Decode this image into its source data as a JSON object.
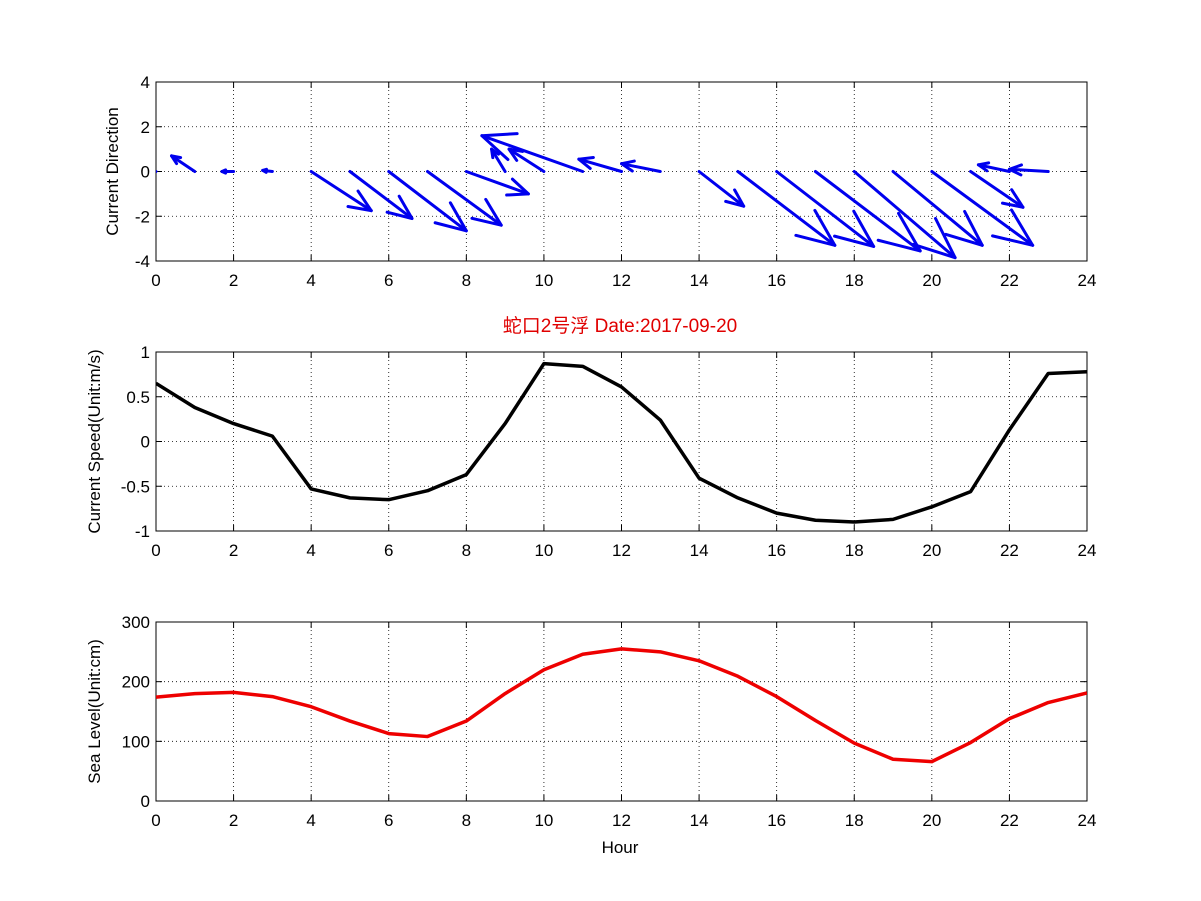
{
  "figure": {
    "title": "蛇口2号浮   Date:2017-09-20",
    "xlabel": "Hour"
  },
  "chart_data": [
    {
      "type": "quiver",
      "ylabel": "Current Direction",
      "xlim": [
        0,
        24
      ],
      "ylim": [
        -4,
        4
      ],
      "xticks": [
        0,
        2,
        4,
        6,
        8,
        10,
        12,
        14,
        16,
        18,
        20,
        22,
        24
      ],
      "yticks": [
        -4,
        -2,
        0,
        2,
        4
      ],
      "grid": true,
      "color": "#0000ee",
      "x": [
        0,
        1,
        2,
        3,
        4,
        5,
        6,
        7,
        8,
        9,
        10,
        11,
        12,
        13,
        14,
        15,
        16,
        17,
        18,
        19,
        20,
        21,
        22,
        23
      ],
      "u": [
        -1.0,
        -0.6,
        -0.3,
        -0.25,
        1.55,
        1.6,
        2.0,
        1.9,
        1.6,
        -0.35,
        -0.9,
        -2.6,
        -1.1,
        -1.0,
        1.15,
        2.5,
        2.5,
        2.7,
        2.6,
        2.3,
        2.6,
        1.35,
        -0.8,
        -1.0
      ],
      "v": [
        0.8,
        0.7,
        0,
        0.05,
        -1.75,
        -2.1,
        -2.65,
        -2.4,
        -1.0,
        1.0,
        1.0,
        1.6,
        0.55,
        0.35,
        -1.55,
        -3.3,
        -3.35,
        -3.55,
        -3.85,
        -3.3,
        -3.3,
        -1.6,
        0.3,
        0.1
      ]
    },
    {
      "type": "line",
      "ylabel": "Current Speed(Unit:m/s)",
      "xlim": [
        0,
        24
      ],
      "ylim": [
        -1,
        1
      ],
      "xticks": [
        0,
        2,
        4,
        6,
        8,
        10,
        12,
        14,
        16,
        18,
        20,
        22,
        24
      ],
      "yticks": [
        -1,
        -0.5,
        0,
        0.5,
        1
      ],
      "grid": true,
      "color": "#000000",
      "x": [
        0,
        1,
        2,
        3,
        4,
        5,
        6,
        7,
        8,
        9,
        10,
        11,
        12,
        13,
        14,
        15,
        16,
        17,
        18,
        19,
        20,
        21,
        22,
        23,
        24
      ],
      "y": [
        0.65,
        0.38,
        0.2,
        0.06,
        -0.53,
        -0.63,
        -0.65,
        -0.55,
        -0.37,
        0.2,
        0.87,
        0.84,
        0.61,
        0.24,
        -0.41,
        -0.63,
        -0.8,
        -0.88,
        -0.9,
        -0.87,
        -0.73,
        -0.56,
        0.13,
        0.76,
        0.78
      ]
    },
    {
      "type": "line",
      "ylabel": "Sea Level(Unit:cm)",
      "xlim": [
        0,
        24
      ],
      "ylim": [
        0,
        300
      ],
      "xticks": [
        0,
        2,
        4,
        6,
        8,
        10,
        12,
        14,
        16,
        18,
        20,
        22,
        24
      ],
      "yticks": [
        0,
        100,
        200,
        300
      ],
      "grid": true,
      "color": "#ee0000",
      "x": [
        0,
        1,
        2,
        3,
        4,
        5,
        6,
        7,
        8,
        9,
        10,
        11,
        12,
        13,
        14,
        15,
        16,
        17,
        18,
        19,
        20,
        21,
        22,
        23,
        24
      ],
      "y": [
        174,
        180,
        182,
        175,
        158,
        134,
        113,
        108,
        134,
        180,
        220,
        246,
        255,
        250,
        235,
        209,
        175,
        135,
        97,
        70,
        66,
        98,
        138,
        165,
        181
      ]
    }
  ]
}
